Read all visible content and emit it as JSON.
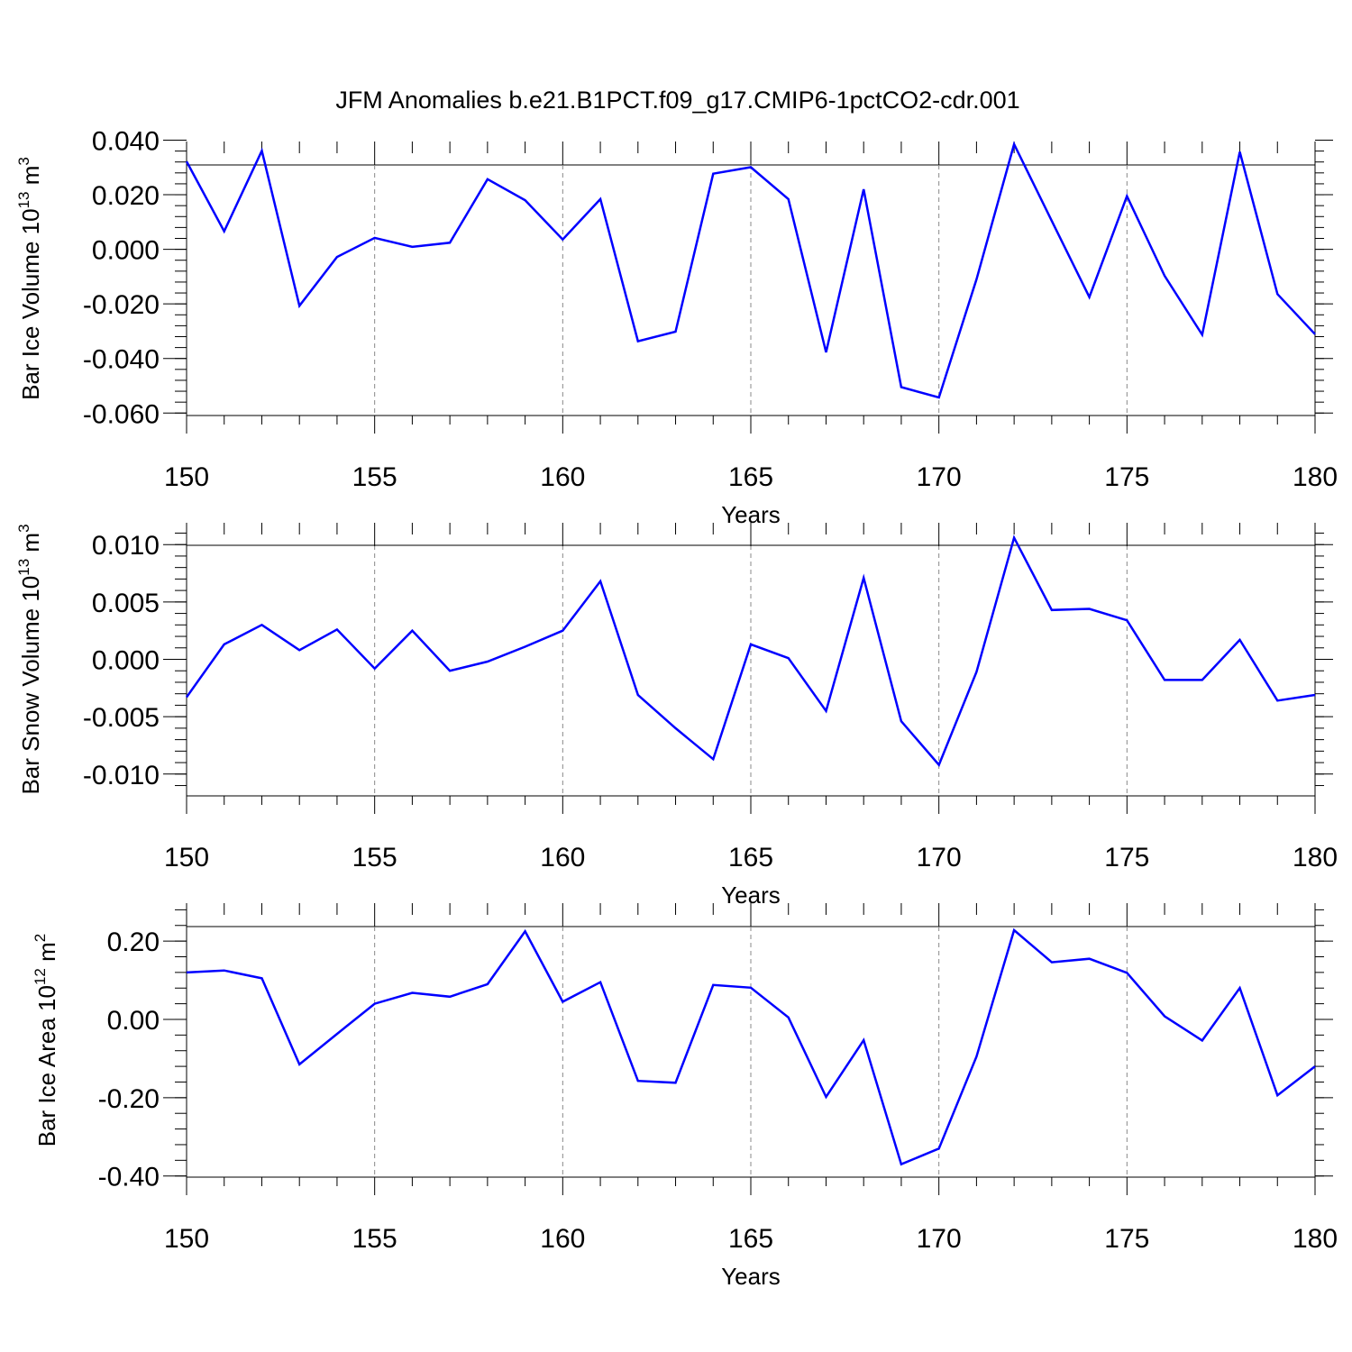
{
  "chart_data": {
    "type": "line",
    "title": "JFM Anomalies b.e21.B1PCT.f09_g17.CMIP6-1pctCO2-cdr.001",
    "line_color": "#0000ff",
    "panels": [
      {
        "id": "ice-volume",
        "xlabel": "Years",
        "ylabel_main": "Bar Ice Volume 10",
        "ylabel_exp": "13",
        "ylabel_unit": " m",
        "ylabel_unit_exp": "3",
        "xlim": [
          150,
          180
        ],
        "ylim": [
          -0.0609,
          0.0395
        ],
        "xticks": [
          150,
          155,
          160,
          165,
          170,
          175,
          180
        ],
        "xtick_labels": [
          "150",
          "155",
          "160",
          "165",
          "170",
          "175",
          "180"
        ],
        "yticks": [
          0.04,
          0.02,
          0.0,
          -0.02,
          -0.04,
          -0.06
        ],
        "ytick_labels": [
          "0.040",
          "0.020",
          "0.000",
          "-0.020",
          "-0.040",
          "-0.060"
        ],
        "x": [
          150,
          151,
          152,
          153,
          154,
          155,
          156,
          157,
          158,
          159,
          160,
          161,
          162,
          163,
          164,
          165,
          166,
          167,
          168,
          169,
          170,
          171,
          172,
          173,
          174,
          175,
          176,
          177,
          178,
          179,
          180
        ],
        "y": [
          0.0322,
          0.0066,
          0.0361,
          -0.0207,
          -0.0028,
          0.0042,
          0.0009,
          0.0024,
          0.0257,
          0.018,
          0.0036,
          0.0184,
          -0.0337,
          -0.0302,
          0.0277,
          0.0301,
          0.0184,
          -0.0377,
          0.022,
          -0.0505,
          -0.0543,
          -0.011,
          0.0385,
          0.0104,
          -0.0175,
          0.0195,
          -0.0097,
          -0.0313,
          0.0357,
          -0.0164,
          -0.0311
        ]
      },
      {
        "id": "snow-volume",
        "xlabel": "Years",
        "ylabel_main": "Bar Snow Volume 10",
        "ylabel_exp": "13",
        "ylabel_unit": " m",
        "ylabel_unit_exp": "3",
        "xlim": [
          150,
          180
        ],
        "ylim": [
          -0.0119,
          0.0119
        ],
        "xticks": [
          150,
          155,
          160,
          165,
          170,
          175,
          180
        ],
        "xtick_labels": [
          "150",
          "155",
          "160",
          "165",
          "170",
          "175",
          "180"
        ],
        "yticks": [
          0.01,
          0.005,
          0.0,
          -0.005,
          -0.01
        ],
        "ytick_labels": [
          "0.010",
          "0.005",
          "0.000",
          "-0.005",
          "-0.010"
        ],
        "x": [
          150,
          151,
          152,
          153,
          154,
          155,
          156,
          157,
          158,
          159,
          160,
          161,
          162,
          163,
          164,
          165,
          166,
          167,
          168,
          169,
          170,
          171,
          172,
          173,
          174,
          175,
          176,
          177,
          178,
          179,
          180
        ],
        "y": [
          -0.0033,
          0.0013,
          0.003,
          0.0008,
          0.0026,
          -0.0008,
          0.0025,
          -0.001,
          -0.0002,
          0.0011,
          0.0025,
          0.0068,
          -0.0031,
          -0.006,
          -0.0087,
          0.0013,
          0.0001,
          -0.0045,
          0.0071,
          -0.0054,
          -0.0092,
          -0.0011,
          0.0106,
          0.0043,
          0.0044,
          0.0034,
          -0.0018,
          -0.0018,
          0.0017,
          -0.0036,
          -0.0031
        ]
      },
      {
        "id": "ice-area",
        "xlabel": "Years",
        "ylabel_main": "Bar Ice Area 10",
        "ylabel_exp": "12",
        "ylabel_unit": " m",
        "ylabel_unit_exp": "2",
        "xlim": [
          150,
          180
        ],
        "ylim": [
          -0.403,
          0.297
        ],
        "xticks": [
          150,
          155,
          160,
          165,
          170,
          175,
          180
        ],
        "xtick_labels": [
          "150",
          "155",
          "160",
          "165",
          "170",
          "175",
          "180"
        ],
        "yticks": [
          0.2,
          0.0,
          -0.2,
          -0.4
        ],
        "ytick_labels": [
          "0.20",
          "0.00",
          "-0.20",
          "-0.40"
        ],
        "x": [
          150,
          151,
          152,
          153,
          154,
          155,
          156,
          157,
          158,
          159,
          160,
          161,
          162,
          163,
          164,
          165,
          166,
          167,
          168,
          169,
          170,
          171,
          172,
          173,
          174,
          175,
          176,
          177,
          178,
          179,
          180
        ],
        "y": [
          0.12,
          0.125,
          0.105,
          -0.115,
          -0.037,
          0.04,
          0.068,
          0.058,
          0.09,
          0.225,
          0.045,
          0.095,
          -0.157,
          -0.162,
          0.088,
          0.081,
          0.005,
          -0.198,
          -0.053,
          -0.37,
          -0.33,
          -0.095,
          0.228,
          0.146,
          0.155,
          0.119,
          0.008,
          -0.054,
          0.08,
          -0.194,
          -0.12
        ]
      }
    ]
  }
}
